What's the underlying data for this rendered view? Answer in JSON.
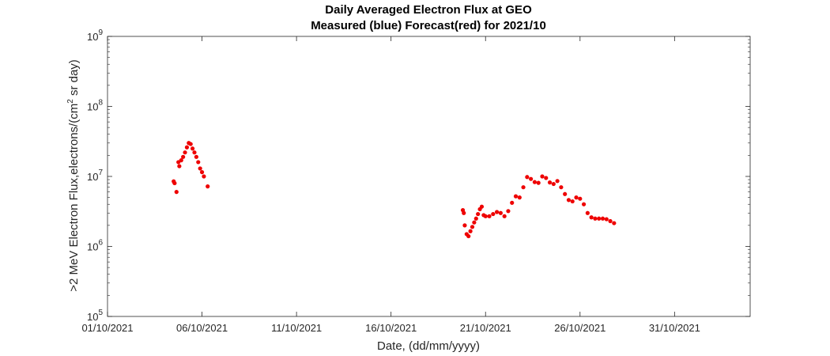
{
  "chart_data": {
    "type": "scatter",
    "title": "Daily Averaged Electron Flux at GEO",
    "subtitle": "Measured (blue) Forecast(red) for 2021/10",
    "xlabel": "Date, (dd/mm/yyyy)",
    "ylabel_parts": {
      "prefix": ">2 MeV Electron Flux,electrons/(cm",
      "sup": "2",
      "suffix": " sr day)"
    },
    "x_tick_labels": [
      "01/10/2021",
      "06/10/2021",
      "11/10/2021",
      "16/10/2021",
      "21/10/2021",
      "26/10/2021",
      "31/10/2021"
    ],
    "x_tick_dates": [
      "2021-10-01",
      "2021-10-06",
      "2021-10-11",
      "2021-10-16",
      "2021-10-21",
      "2021-10-26",
      "2021-10-31"
    ],
    "xlim": [
      "2021-10-01",
      "2021-11-04"
    ],
    "y_scale": "log",
    "ylim": [
      100000,
      1000000000
    ],
    "y_ticks": [
      {
        "base": "10",
        "exp": "5",
        "value": 100000
      },
      {
        "base": "10",
        "exp": "6",
        "value": 1000000
      },
      {
        "base": "10",
        "exp": "7",
        "value": 10000000
      },
      {
        "base": "10",
        "exp": "8",
        "value": 100000000
      },
      {
        "base": "10",
        "exp": "9",
        "value": 1000000000
      }
    ],
    "grid": false,
    "series": [
      {
        "color": "#ee0000",
        "points": [
          [
            "2021-10-04 12:00",
            8500000
          ],
          [
            "2021-10-04 13:12",
            8000000
          ],
          [
            "2021-10-04 15:36",
            6000000
          ],
          [
            "2021-10-04 18:00",
            16000000
          ],
          [
            "2021-10-04 19:12",
            14000000
          ],
          [
            "2021-10-04 21:36",
            17000000
          ],
          [
            "2021-10-05 00:00",
            19000000
          ],
          [
            "2021-10-05 02:24",
            22000000
          ],
          [
            "2021-10-05 04:48",
            26000000
          ],
          [
            "2021-10-05 07:12",
            30000000
          ],
          [
            "2021-10-05 09:36",
            29000000
          ],
          [
            "2021-10-05 12:00",
            25000000
          ],
          [
            "2021-10-05 14:24",
            22000000
          ],
          [
            "2021-10-05 16:48",
            19000000
          ],
          [
            "2021-10-05 19:12",
            16000000
          ],
          [
            "2021-10-05 21:36",
            13000000
          ],
          [
            "2021-10-06 00:00",
            11500000
          ],
          [
            "2021-10-06 02:24",
            10000000
          ],
          [
            "2021-10-06 07:12",
            7200000
          ],
          [
            "2021-10-19 19:12",
            3300000
          ],
          [
            "2021-10-19 20:24",
            3000000
          ],
          [
            "2021-10-19 21:36",
            2000000
          ],
          [
            "2021-10-20 00:00",
            1500000
          ],
          [
            "2021-10-20 02:24",
            1400000
          ],
          [
            "2021-10-20 04:48",
            1650000
          ],
          [
            "2021-10-20 07:12",
            1900000
          ],
          [
            "2021-10-20 09:36",
            2200000
          ],
          [
            "2021-10-20 12:00",
            2500000
          ],
          [
            "2021-10-20 14:24",
            2900000
          ],
          [
            "2021-10-20 16:48",
            3400000
          ],
          [
            "2021-10-20 19:12",
            3700000
          ],
          [
            "2021-10-20 21:36",
            2800000
          ],
          [
            "2021-10-21 00:00",
            2700000
          ],
          [
            "2021-10-21 04:48",
            2700000
          ],
          [
            "2021-10-21 09:36",
            2900000
          ],
          [
            "2021-10-21 14:24",
            3100000
          ],
          [
            "2021-10-21 19:12",
            3000000
          ],
          [
            "2021-10-22 00:00",
            2700000
          ],
          [
            "2021-10-22 04:48",
            3200000
          ],
          [
            "2021-10-22 09:36",
            4200000
          ],
          [
            "2021-10-22 14:24",
            5200000
          ],
          [
            "2021-10-22 19:12",
            5000000
          ],
          [
            "2021-10-23 00:00",
            7000000
          ],
          [
            "2021-10-23 04:48",
            9800000
          ],
          [
            "2021-10-23 09:36",
            9200000
          ],
          [
            "2021-10-23 14:24",
            8300000
          ],
          [
            "2021-10-23 19:12",
            8100000
          ],
          [
            "2021-10-24 00:00",
            10000000
          ],
          [
            "2021-10-24 04:48",
            9500000
          ],
          [
            "2021-10-24 09:36",
            8200000
          ],
          [
            "2021-10-24 14:24",
            7800000
          ],
          [
            "2021-10-24 19:12",
            8600000
          ],
          [
            "2021-10-25 00:00",
            7000000
          ],
          [
            "2021-10-25 04:48",
            5600000
          ],
          [
            "2021-10-25 09:36",
            4600000
          ],
          [
            "2021-10-25 14:24",
            4400000
          ],
          [
            "2021-10-25 19:12",
            5000000
          ],
          [
            "2021-10-26 00:00",
            4800000
          ],
          [
            "2021-10-26 04:48",
            4000000
          ],
          [
            "2021-10-26 09:36",
            3000000
          ],
          [
            "2021-10-26 14:24",
            2600000
          ],
          [
            "2021-10-26 19:12",
            2500000
          ],
          [
            "2021-10-27 00:00",
            2500000
          ],
          [
            "2021-10-27 04:48",
            2500000
          ],
          [
            "2021-10-27 09:36",
            2450000
          ],
          [
            "2021-10-27 14:24",
            2300000
          ],
          [
            "2021-10-27 19:12",
            2150000
          ]
        ]
      }
    ]
  }
}
